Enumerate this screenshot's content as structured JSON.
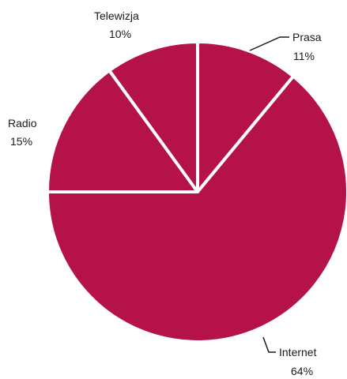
{
  "chart_data": {
    "type": "pie",
    "title": "",
    "slice_color": "#b5124a",
    "separator_color": "#ffffff",
    "start_angle_deg": 0,
    "direction": "clockwise",
    "legend": "none",
    "slices": [
      {
        "label": "Prasa",
        "value": 11,
        "value_label": "11%"
      },
      {
        "label": "Internet",
        "value": 64,
        "value_label": "64%"
      },
      {
        "label": "Radio",
        "value": 15,
        "value_label": "15%"
      },
      {
        "label": "Telewizja",
        "value": 10,
        "value_label": "10%"
      }
    ]
  }
}
